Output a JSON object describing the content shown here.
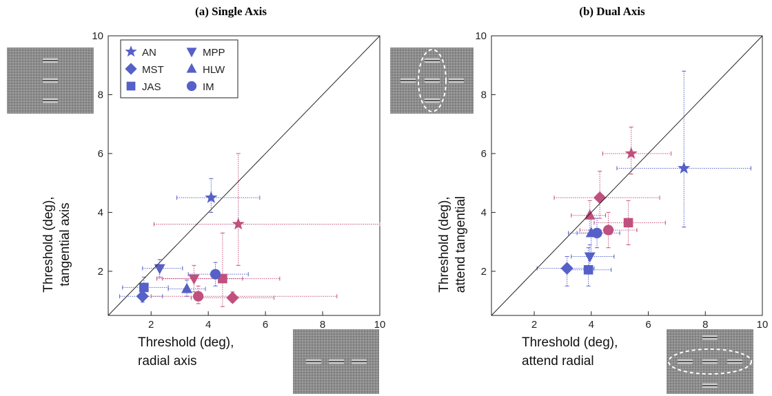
{
  "colors": {
    "blue": "#5560c8",
    "pink": "#c0507e",
    "stim_bg": "#8a8a8a",
    "axis": "#222222"
  },
  "chart_data": [
    {
      "type": "scatter",
      "title": "(a) Single Axis",
      "xlabel": [
        "Threshold (deg),",
        "radial axis"
      ],
      "ylabel": [
        "Threshold (deg),",
        "tangential axis"
      ],
      "xlim": [
        0.5,
        10
      ],
      "ylim": [
        0.5,
        10
      ],
      "xticks": [
        2,
        4,
        6,
        8,
        10
      ],
      "yticks": [
        2,
        4,
        6,
        8,
        10
      ],
      "diagonal": true,
      "legend": {
        "position": "top-left",
        "entries": [
          {
            "label": "AN",
            "marker": "star"
          },
          {
            "label": "MPP",
            "marker": "triangle-down"
          },
          {
            "label": "MST",
            "marker": "diamond"
          },
          {
            "label": "HLW",
            "marker": "triangle-up"
          },
          {
            "label": "JAS",
            "marker": "square"
          },
          {
            "label": "IM",
            "marker": "circle"
          }
        ]
      },
      "points": [
        {
          "observer": "AN",
          "marker": "star",
          "color": "blue",
          "x": 4.1,
          "y": 4.5,
          "xerr": [
            2.9,
            5.8
          ],
          "yerr": [
            4.0,
            5.15
          ]
        },
        {
          "observer": "AN",
          "marker": "star",
          "color": "pink",
          "x": 5.05,
          "y": 3.6,
          "xerr": [
            2.1,
            10
          ],
          "yerr": [
            2.2,
            6.0
          ]
        },
        {
          "observer": "MPP",
          "marker": "triangle-down",
          "color": "blue",
          "x": 2.3,
          "y": 2.1,
          "xerr": [
            1.7,
            3.1
          ],
          "yerr": [
            1.8,
            2.4
          ]
        },
        {
          "observer": "MPP",
          "marker": "triangle-down",
          "color": "pink",
          "x": 3.5,
          "y": 1.75,
          "xerr": [
            2.2,
            5.2
          ],
          "yerr": [
            1.3,
            2.2
          ]
        },
        {
          "observer": "JAS",
          "marker": "square",
          "color": "blue",
          "x": 1.75,
          "y": 1.45,
          "xerr": [
            1.0,
            2.6
          ],
          "yerr": [
            1.1,
            1.8
          ]
        },
        {
          "observer": "JAS",
          "marker": "square",
          "color": "pink",
          "x": 4.5,
          "y": 1.75,
          "xerr": [
            2.4,
            6.5
          ],
          "yerr": [
            0.8,
            3.3
          ]
        },
        {
          "observer": "MST",
          "marker": "diamond",
          "color": "blue",
          "x": 1.7,
          "y": 1.15,
          "xerr": [
            0.9,
            2.4
          ],
          "yerr": [
            0.95,
            1.35
          ]
        },
        {
          "observer": "MST",
          "marker": "diamond",
          "color": "pink",
          "x": 4.85,
          "y": 1.1,
          "xerr": [
            3.4,
            6.3
          ],
          "yerr": [
            0.95,
            1.3
          ]
        },
        {
          "observer": "HLW",
          "marker": "triangle-up",
          "color": "blue",
          "x": 3.25,
          "y": 1.4,
          "xerr": [
            2.6,
            3.9
          ],
          "yerr": [
            1.15,
            1.7
          ]
        },
        {
          "observer": "IM",
          "marker": "circle",
          "color": "blue",
          "x": 4.25,
          "y": 1.9,
          "xerr": [
            3.3,
            5.4
          ],
          "yerr": [
            1.5,
            2.3
          ]
        },
        {
          "observer": "IM",
          "marker": "circle",
          "color": "pink",
          "x": 3.65,
          "y": 1.15,
          "xerr": [
            2.0,
            8.5
          ],
          "yerr": [
            0.9,
            1.5
          ]
        }
      ]
    },
    {
      "type": "scatter",
      "title": "(b) Dual Axis",
      "xlabel": [
        "Threshold (deg),",
        "attend radial"
      ],
      "ylabel": [
        "Threshold (deg),",
        "attend tangential"
      ],
      "xlim": [
        0.5,
        10
      ],
      "ylim": [
        0.5,
        10
      ],
      "xticks": [
        2,
        4,
        6,
        8,
        10
      ],
      "yticks": [
        2,
        4,
        6,
        8,
        10
      ],
      "diagonal": true,
      "points": [
        {
          "observer": "AN",
          "marker": "star",
          "color": "blue",
          "x": 7.25,
          "y": 5.5,
          "xerr": [
            4.9,
            9.6
          ],
          "yerr": [
            3.5,
            8.8
          ]
        },
        {
          "observer": "AN",
          "marker": "star",
          "color": "pink",
          "x": 5.4,
          "y": 6.0,
          "xerr": [
            4.4,
            6.8
          ],
          "yerr": [
            5.3,
            6.9
          ]
        },
        {
          "observer": "MST",
          "marker": "diamond",
          "color": "blue",
          "x": 3.15,
          "y": 2.1,
          "xerr": [
            2.1,
            4.1
          ],
          "yerr": [
            1.5,
            2.5
          ]
        },
        {
          "observer": "MST",
          "marker": "diamond",
          "color": "pink",
          "x": 4.3,
          "y": 4.5,
          "xerr": [
            2.7,
            6.4
          ],
          "yerr": [
            3.8,
            5.4
          ]
        },
        {
          "observer": "JAS",
          "marker": "square",
          "color": "blue",
          "x": 3.9,
          "y": 2.05,
          "xerr": [
            3.2,
            4.7
          ],
          "yerr": [
            1.5,
            2.8
          ]
        },
        {
          "observer": "JAS",
          "marker": "square",
          "color": "pink",
          "x": 5.3,
          "y": 3.65,
          "xerr": [
            4.1,
            6.6
          ],
          "yerr": [
            2.9,
            4.4
          ]
        },
        {
          "observer": "MPP",
          "marker": "triangle-down",
          "color": "blue",
          "x": 3.95,
          "y": 2.5,
          "xerr": [
            3.3,
            4.8
          ],
          "yerr": [
            2.1,
            2.9
          ]
        },
        {
          "observer": "HLW",
          "marker": "triangle-up",
          "color": "blue",
          "x": 4.0,
          "y": 3.3,
          "xerr": [
            3.2,
            4.7
          ],
          "yerr": [
            2.6,
            3.9
          ]
        },
        {
          "observer": "HLW",
          "marker": "triangle-up",
          "color": "pink",
          "x": 3.95,
          "y": 3.9,
          "xerr": [
            3.3,
            4.5
          ],
          "yerr": [
            3.4,
            4.4
          ]
        },
        {
          "observer": "IM",
          "marker": "circle",
          "color": "blue",
          "x": 4.2,
          "y": 3.3,
          "xerr": [
            3.5,
            5.0
          ],
          "yerr": [
            2.8,
            3.8
          ]
        },
        {
          "observer": "IM",
          "marker": "circle",
          "color": "pink",
          "x": 4.6,
          "y": 3.4,
          "xerr": [
            3.6,
            5.6
          ],
          "yerr": [
            2.8,
            4.0
          ]
        }
      ]
    }
  ]
}
